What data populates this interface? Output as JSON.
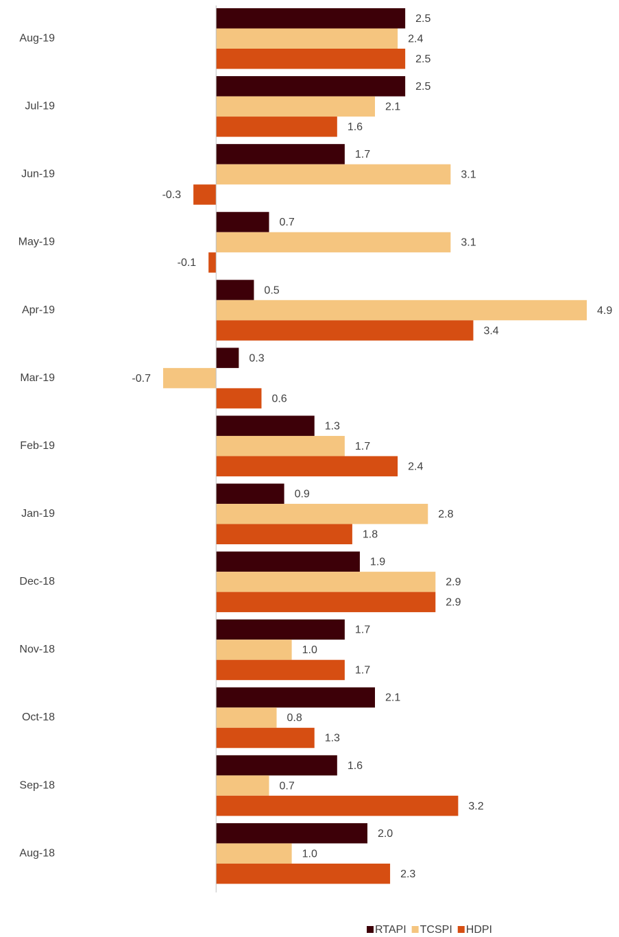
{
  "chart_data": {
    "type": "bar",
    "orientation": "horizontal",
    "categories": [
      "Aug-19",
      "Jul-19",
      "Jun-19",
      "May-19",
      "Apr-19",
      "Mar-19",
      "Feb-19",
      "Jan-19",
      "Dec-18",
      "Nov-18",
      "Oct-18",
      "Sep-18",
      "Aug-18"
    ],
    "series": [
      {
        "name": "RTAPI",
        "color": "#3d0008",
        "values": [
          2.5,
          2.5,
          1.7,
          0.7,
          0.5,
          0.3,
          1.3,
          0.9,
          1.9,
          1.7,
          2.1,
          1.6,
          2.0
        ],
        "value_labels": [
          "2.5",
          "2.5",
          "1.7",
          "0.7",
          "0.5",
          "0.3",
          "1.3",
          "0.9",
          "1.9",
          "1.7",
          "2.1",
          "1.6",
          "2.0"
        ]
      },
      {
        "name": "TCSPI",
        "color": "#f5c57f",
        "values": [
          2.4,
          2.1,
          3.1,
          3.1,
          4.9,
          -0.7,
          1.7,
          2.8,
          2.9,
          1.0,
          0.8,
          0.7,
          1.0
        ],
        "value_labels": [
          "2.4",
          "2.1",
          "3.1",
          "3.1",
          "4.9",
          "-0.7",
          "1.7",
          "2.8",
          "2.9",
          "1.0",
          "0.8",
          "0.7",
          "1.0"
        ]
      },
      {
        "name": "HDPI",
        "color": "#d64e12",
        "values": [
          2.5,
          1.6,
          -0.3,
          -0.1,
          3.4,
          0.6,
          2.4,
          1.8,
          2.9,
          1.7,
          1.3,
          3.2,
          2.3
        ],
        "value_labels": [
          "2.5",
          "1.6",
          "-0.3",
          "-0.1",
          "3.4",
          "0.6",
          "2.4",
          "1.8",
          "2.9",
          "1.7",
          "1.3",
          "3.2",
          "2.3"
        ]
      }
    ],
    "legend": "bottom"
  }
}
